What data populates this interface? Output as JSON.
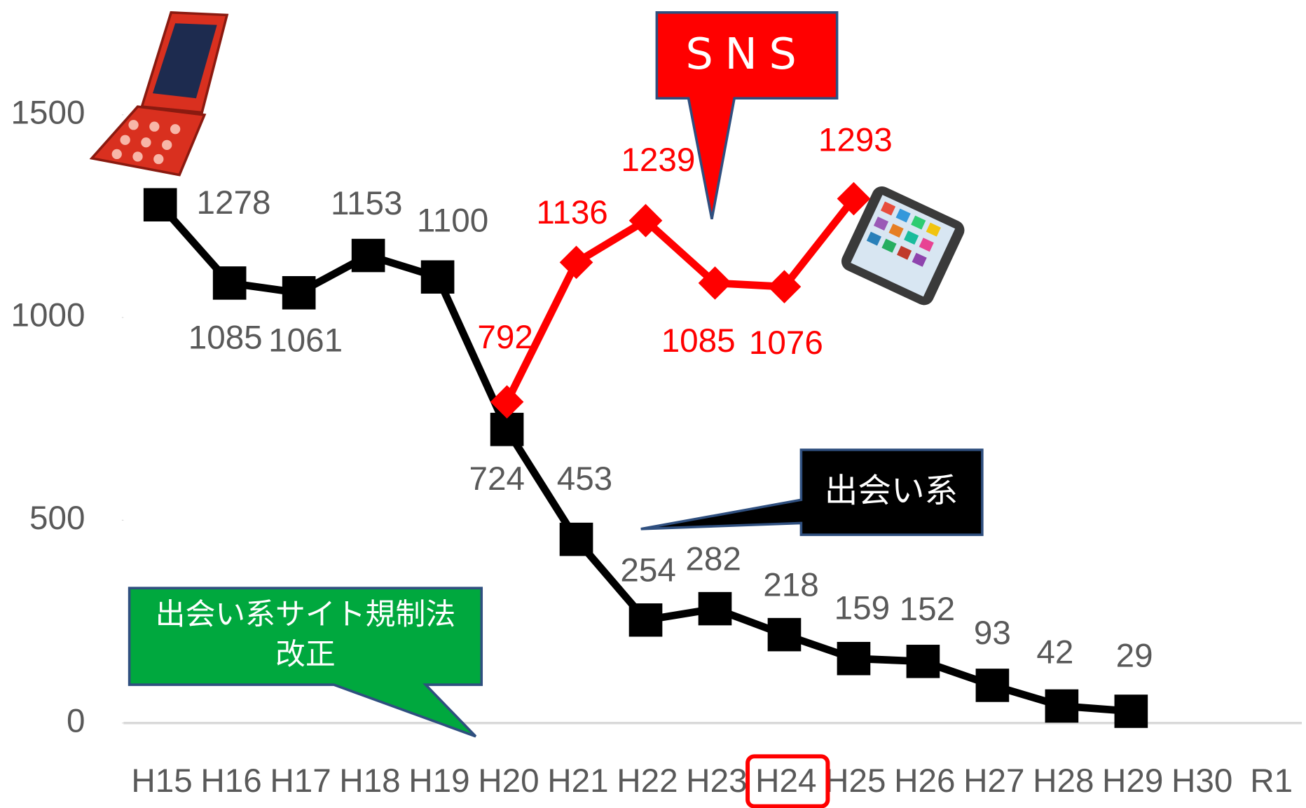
{
  "chart_data": {
    "type": "line",
    "categories": [
      "H15",
      "H16",
      "H17",
      "H18",
      "H19",
      "H20",
      "H21",
      "H22",
      "H23",
      "H24",
      "H25",
      "H26",
      "H27",
      "H28",
      "H29",
      "H30",
      "R1"
    ],
    "series": [
      {
        "color": "#000000",
        "marker": "square",
        "values": [
          1278,
          1085,
          1061,
          1153,
          1100,
          724,
          453,
          254,
          282,
          218,
          159,
          152,
          93,
          42,
          29,
          null,
          null
        ]
      },
      {
        "color": "#ff0000",
        "marker": "diamond",
        "values": [
          null,
          null,
          null,
          null,
          null,
          792,
          1136,
          1239,
          1085,
          1076,
          1293,
          null,
          null,
          null,
          null,
          null,
          null
        ]
      }
    ],
    "ylim": [
      0,
      1783
    ],
    "yticks": [
      0,
      500,
      1000,
      1500
    ],
    "grid": false,
    "annotations": [
      "SNS",
      "出会い系",
      [
        "出会い系サイト規制法",
        "改正"
      ]
    ]
  }
}
